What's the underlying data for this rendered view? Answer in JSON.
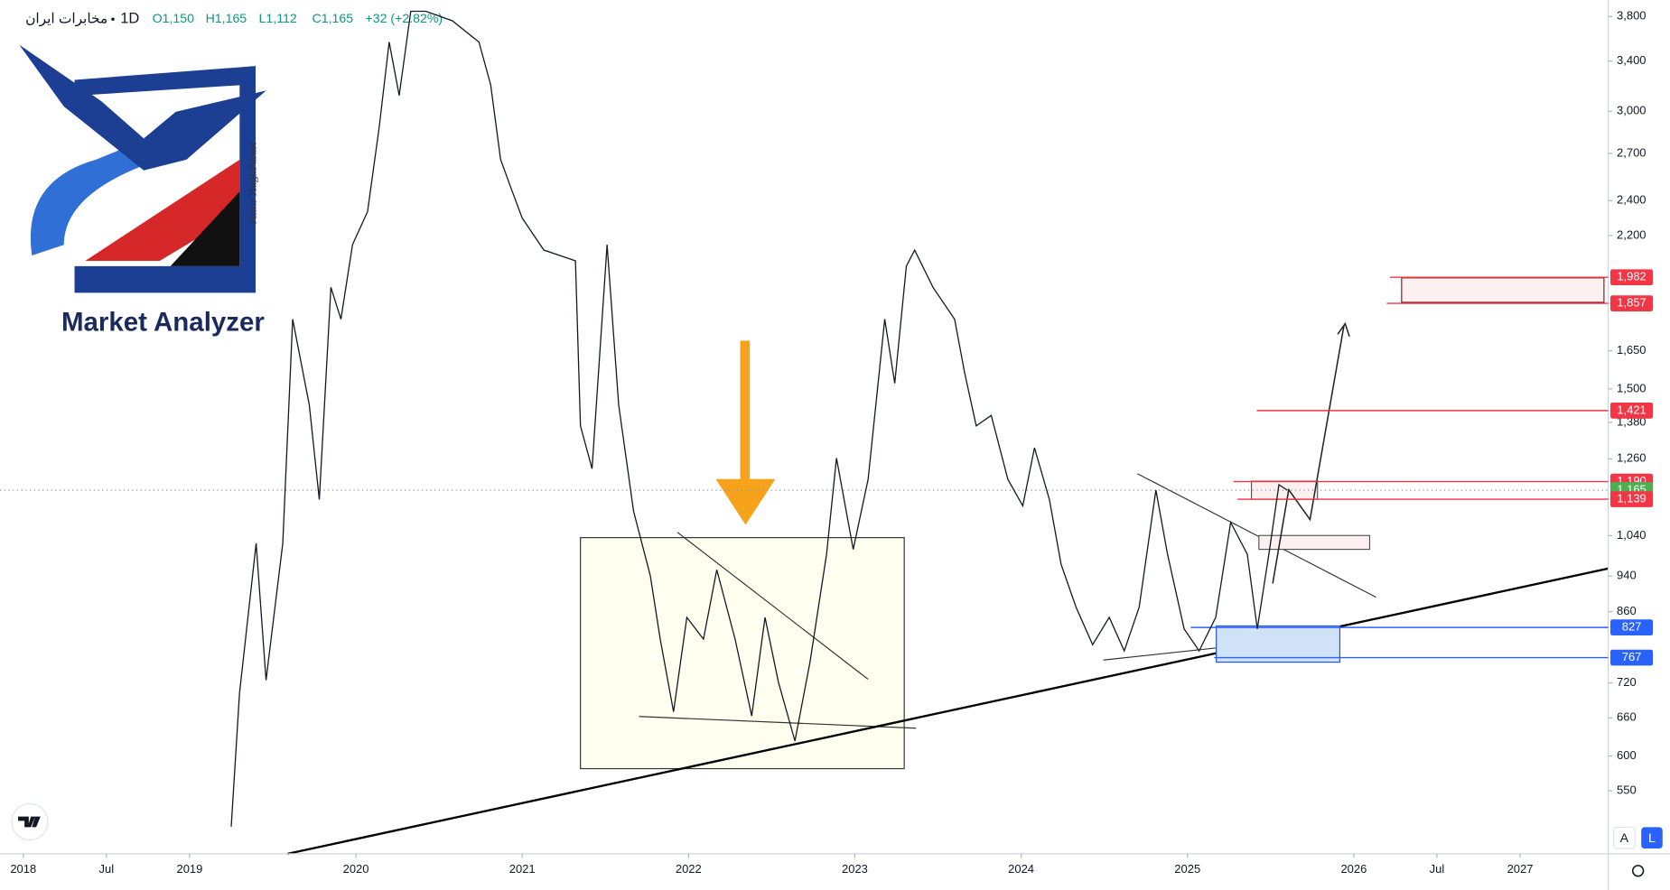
{
  "header": {
    "symbol": "مخابرات ایران",
    "interval": "1D",
    "ohlc": [
      "O1,150",
      "H1,165",
      "L1,112",
      "C1,165"
    ],
    "change": "+32 (+2.82%)"
  },
  "logo": {
    "title": "Market Analyzer",
    "author": "Amir HaghParast"
  },
  "toolbar": {
    "auto": "A",
    "log": "L"
  },
  "chart_data": {
    "type": "line",
    "log_scale": true,
    "color": "#131722",
    "xlim": [
      2017.86,
      2027.53
    ],
    "ylim": [
      470,
      3960
    ],
    "xticks": [
      {
        "value": 2018,
        "label": "2018"
      },
      {
        "value": 2018.5,
        "label": "Jul"
      },
      2019,
      2020,
      2021,
      2022,
      2023,
      2024,
      2025,
      2026,
      {
        "value": 2026.5,
        "label": "Jul"
      },
      2027
    ],
    "yticks": [
      {
        "value": 3800,
        "label": "3,800"
      },
      {
        "value": 3400,
        "label": "3,400"
      },
      {
        "value": 3000,
        "label": "3,000"
      },
      {
        "value": 2700,
        "label": "2,700"
      },
      {
        "value": 2400,
        "label": "2,400"
      },
      {
        "value": 2200,
        "label": "2,200"
      },
      {
        "value": 1650,
        "label": "1,650"
      },
      {
        "value": 1500,
        "label": "1,500"
      },
      {
        "value": 1380,
        "label": "1,380"
      },
      {
        "value": 1260,
        "label": "1,260"
      },
      {
        "value": 1040,
        "label": "1,040"
      },
      940,
      860,
      720,
      660,
      600,
      550
    ],
    "x": [
      2019.25,
      2019.3,
      2019.4,
      2019.46,
      2019.56,
      2019.62,
      2019.72,
      2019.78,
      2019.85,
      2019.91,
      2019.98,
      2020.07,
      2020.14,
      2020.2,
      2020.26,
      2020.33,
      2020.42,
      2020.58,
      2020.74,
      2020.81,
      2020.87,
      2020.94,
      2021.0,
      2021.13,
      2021.32,
      2021.35,
      2021.42,
      2021.51,
      2021.58,
      2021.67,
      2021.77,
      2021.83,
      2021.91,
      2021.99,
      2022.09,
      2022.17,
      2022.28,
      2022.38,
      2022.46,
      2022.54,
      2022.64,
      2022.73,
      2022.83,
      2022.89,
      2022.99,
      2023.08,
      2023.18,
      2023.24,
      2023.31,
      2023.36,
      2023.47,
      2023.6,
      2023.66,
      2023.73,
      2023.82,
      2023.92,
      2024.01,
      2024.08,
      2024.17,
      2024.24,
      2024.33,
      2024.43,
      2024.53,
      2024.62,
      2024.71,
      2024.81,
      2024.88,
      2024.98,
      2025.07,
      2025.17,
      2025.26,
      2025.36,
      2025.42,
      2025.49,
      2025.55,
      2025.6
    ],
    "values": [
      503,
      702,
      1020,
      725,
      1020,
      1785,
      1441,
      1138,
      1933,
      1785,
      2150,
      2335,
      2880,
      3565,
      3120,
      3850,
      3850,
      3760,
      3565,
      3205,
      2660,
      2455,
      2298,
      2121,
      2065,
      1368,
      1229,
      2150,
      1441,
      1105,
      941,
      803,
      670,
      848,
      803,
      955,
      803,
      663,
      848,
      722,
      623,
      758,
      993,
      1262,
      1005,
      1197,
      1785,
      1521,
      2038,
      2121,
      1933,
      1785,
      1562,
      1368,
      1404,
      1197,
      1120,
      1295,
      1138,
      968,
      870,
      792,
      848,
      780,
      870,
      1165,
      993,
      824,
      780,
      848,
      1075,
      993,
      824,
      993,
      1181,
      1165
    ],
    "levels": [
      {
        "value": 1982,
        "label": "1,982",
        "color": "#f23645"
      },
      {
        "value": 1857,
        "label": "1,857",
        "color": "#f23645"
      },
      {
        "value": 1421,
        "label": "1,421",
        "color": "#f23645"
      },
      {
        "value": 1190,
        "label": "1,190",
        "color": "#f23645"
      },
      {
        "value": 1165,
        "label": "1,165",
        "color": "#4caf50",
        "line": "dotted"
      },
      {
        "value": 1139,
        "label": "1,139",
        "color": "#f23645"
      },
      {
        "value": 827,
        "label": "827",
        "color": "#2962ff"
      },
      {
        "value": 767,
        "label": "767",
        "color": "#2962ff"
      }
    ]
  }
}
